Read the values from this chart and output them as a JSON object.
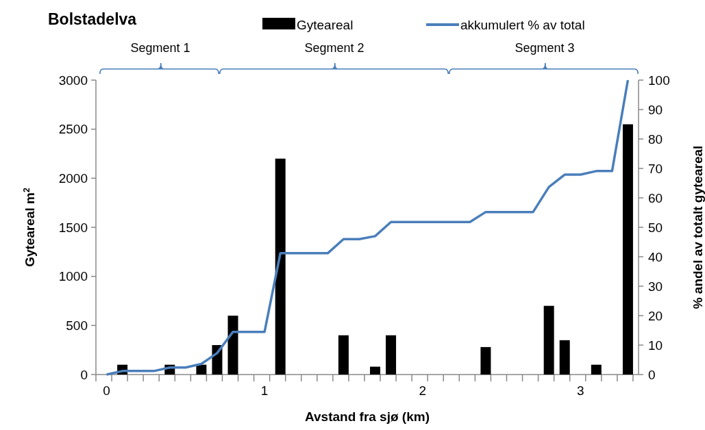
{
  "chart_data": {
    "type": "bar",
    "title": "Bolstadelva",
    "xlabel": "Avstand fra sjø (km)",
    "ylabel": "Gyteareal m$^{2}$",
    "y2label": "% andel av totalt gyteareal",
    "annotations": [
      "Segment 1",
      "Segment 2",
      "Segment 3"
    ],
    "categories": [
      "0",
      null,
      null,
      null,
      null,
      null,
      null,
      null,
      null,
      null,
      "1",
      null,
      null,
      null,
      null,
      null,
      null,
      null,
      null,
      null,
      "2",
      null,
      null,
      null,
      null,
      null,
      null,
      null,
      null,
      null,
      "3",
      null,
      null,
      null
    ],
    "series": [
      {
        "name": "Gyteareal",
        "color": "#000000",
        "values": [
          0,
          100,
          0,
          0,
          100,
          0,
          100,
          300,
          600,
          0,
          0,
          2200,
          0,
          0,
          0,
          400,
          0,
          80,
          400,
          0,
          0,
          0,
          0,
          0,
          280,
          0,
          0,
          0,
          700,
          350,
          0,
          100,
          0,
          2550
        ]
      },
      {
        "name": "akkumulert % av total",
        "type": "line",
        "axis": "y2",
        "color": "#4a7ebb",
        "values": [
          0,
          1.2,
          1.2,
          1.2,
          2.4,
          2.4,
          3.6,
          7.3,
          14.5,
          14.5,
          14.5,
          41.2,
          41.2,
          41.2,
          41.2,
          46,
          46,
          47,
          51.8,
          51.8,
          51.8,
          51.8,
          51.8,
          51.8,
          55.2,
          55.2,
          55.2,
          55.2,
          63.7,
          67.9,
          67.9,
          69.1,
          69.1,
          100
        ]
      }
    ],
    "ylim": [
      0,
      3000
    ],
    "yticks": [
      0,
      500,
      1000,
      1500,
      2000,
      2500,
      3000
    ],
    "y2lim": [
      0,
      100
    ],
    "y2ticks": [
      0,
      10,
      20,
      30,
      40,
      50,
      60,
      70,
      80,
      90,
      100
    ],
    "legend": "top"
  }
}
